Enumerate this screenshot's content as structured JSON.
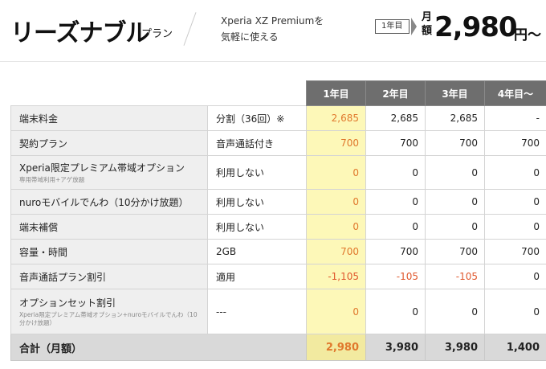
{
  "header": {
    "plan_name": "リーズナブル",
    "plan_suffix": "プラン",
    "description_line1": "Xperia XZ Premiumを",
    "description_line2": "気軽に使える",
    "year_tag": "1年目",
    "monthly_label": "月額",
    "price": "2,980",
    "price_unit": "円〜"
  },
  "table": {
    "columns": [
      "1年目",
      "2年目",
      "3年目",
      "4年目〜"
    ],
    "rows": [
      {
        "label": "端末料金",
        "sub": "",
        "detail": "分割（36回）※",
        "values": [
          "2,685",
          "2,685",
          "2,685",
          "-"
        ]
      },
      {
        "label": "契約プラン",
        "sub": "",
        "detail": "音声通話付き",
        "values": [
          "700",
          "700",
          "700",
          "700"
        ]
      },
      {
        "label": "Xperia限定プレミアム帯域オプション",
        "sub": "専用帯域利用+アゲ放題",
        "detail": "利用しない",
        "values": [
          "0",
          "0",
          "0",
          "0"
        ]
      },
      {
        "label": "nuroモバイルでんわ（10分かけ放題）",
        "sub": "",
        "detail": "利用しない",
        "values": [
          "0",
          "0",
          "0",
          "0"
        ]
      },
      {
        "label": "端末補償",
        "sub": "",
        "detail": "利用しない",
        "values": [
          "0",
          "0",
          "0",
          "0"
        ]
      },
      {
        "label": "容量・時間",
        "sub": "",
        "detail": "2GB",
        "values": [
          "700",
          "700",
          "700",
          "700"
        ]
      },
      {
        "label": "音声通話プラン割引",
        "sub": "",
        "detail": "適用",
        "values": [
          "-1,105",
          "-105",
          "-105",
          "0"
        ]
      },
      {
        "label": "オプションセット割引",
        "sub": "Xperia限定プレミアム帯域オプション+nuroモバイルでんわ（10分かけ放題）",
        "detail": "---",
        "values": [
          "0",
          "0",
          "0",
          "0"
        ]
      }
    ],
    "total": {
      "label": "合計（月額）",
      "values": [
        "2,980",
        "3,980",
        "3,980",
        "1,400"
      ]
    }
  },
  "colors": {
    "header_bg": "#6e6e6e",
    "year1_highlight": "#fdf8b8",
    "year1_text": "#e0782d",
    "negative_text": "#e0582d",
    "label_bg": "#efefef",
    "total_bg": "#d9d9d9"
  }
}
